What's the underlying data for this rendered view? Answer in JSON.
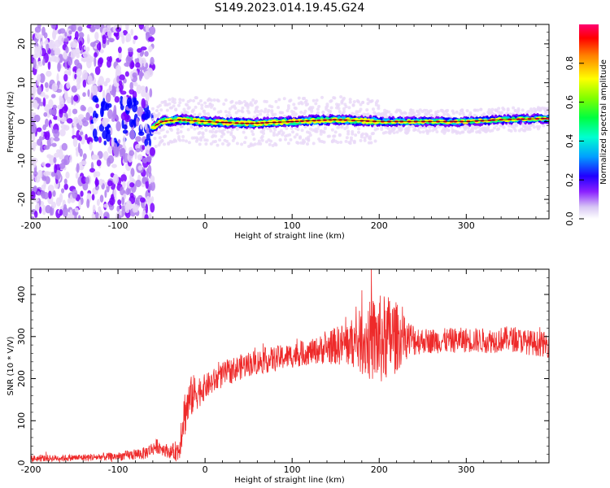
{
  "title": "S149.2023.014.19.45.G24",
  "colors": {
    "snr_line": "#ee2a2a",
    "spectrum_ramp": [
      "#ffffff",
      "#e8d8f8",
      "#b080f0",
      "#7a00ff",
      "#0000ff",
      "#00c0ff",
      "#00ff80",
      "#40ff00",
      "#ffff00",
      "#ff8000",
      "#ff0040"
    ],
    "fit_line": "#000000"
  },
  "chart_data": [
    {
      "type": "heatmap",
      "name": "spectrogram",
      "xlabel": "Height of straight line (km)",
      "ylabel": "Frequency (Hz)",
      "xlim": [
        -200,
        395
      ],
      "ylim": [
        -25,
        25
      ],
      "xticks": [
        -200,
        -100,
        0,
        100,
        200,
        300
      ],
      "yticks": [
        -20,
        -10,
        0,
        10,
        20
      ],
      "colorbar": {
        "label": "Normalized spectral amplitude",
        "range": [
          0.0,
          1.0
        ],
        "ticks": [
          0.0,
          0.2,
          0.4,
          0.6,
          0.8
        ]
      },
      "ridge": {
        "x": [
          -60,
          -50,
          -30,
          0,
          50,
          100,
          150,
          200,
          250,
          300,
          340,
          395
        ],
        "y": [
          -1.5,
          0,
          0.5,
          0,
          -0.5,
          0,
          0.5,
          0,
          0,
          0,
          0.5,
          0.8
        ]
      },
      "noise_region_x": [
        -200,
        -60
      ]
    },
    {
      "type": "line",
      "name": "snr",
      "xlabel": "Height of straight line (km)",
      "ylabel": "SNR (10 * V/V)",
      "xlim": [
        -200,
        395
      ],
      "ylim": [
        0,
        460
      ],
      "xticks": [
        -200,
        -100,
        0,
        100,
        200,
        300
      ],
      "yticks": [
        0,
        100,
        200,
        300,
        400
      ],
      "x": [
        -200,
        -150,
        -100,
        -70,
        -55,
        -40,
        -30,
        -25,
        -15,
        0,
        25,
        50,
        75,
        100,
        125,
        150,
        170,
        185,
        200,
        215,
        230,
        250,
        275,
        300,
        325,
        350,
        375,
        395
      ],
      "y": [
        10,
        12,
        15,
        22,
        40,
        25,
        30,
        110,
        160,
        180,
        215,
        235,
        245,
        255,
        265,
        278,
        285,
        290,
        290,
        300,
        295,
        290,
        290,
        292,
        290,
        295,
        285,
        280
      ],
      "noise_amplitude": [
        8,
        8,
        10,
        15,
        18,
        15,
        30,
        60,
        50,
        30,
        30,
        30,
        30,
        30,
        30,
        45,
        60,
        90,
        110,
        100,
        50,
        30,
        30,
        30,
        30,
        30,
        30,
        30
      ]
    }
  ]
}
